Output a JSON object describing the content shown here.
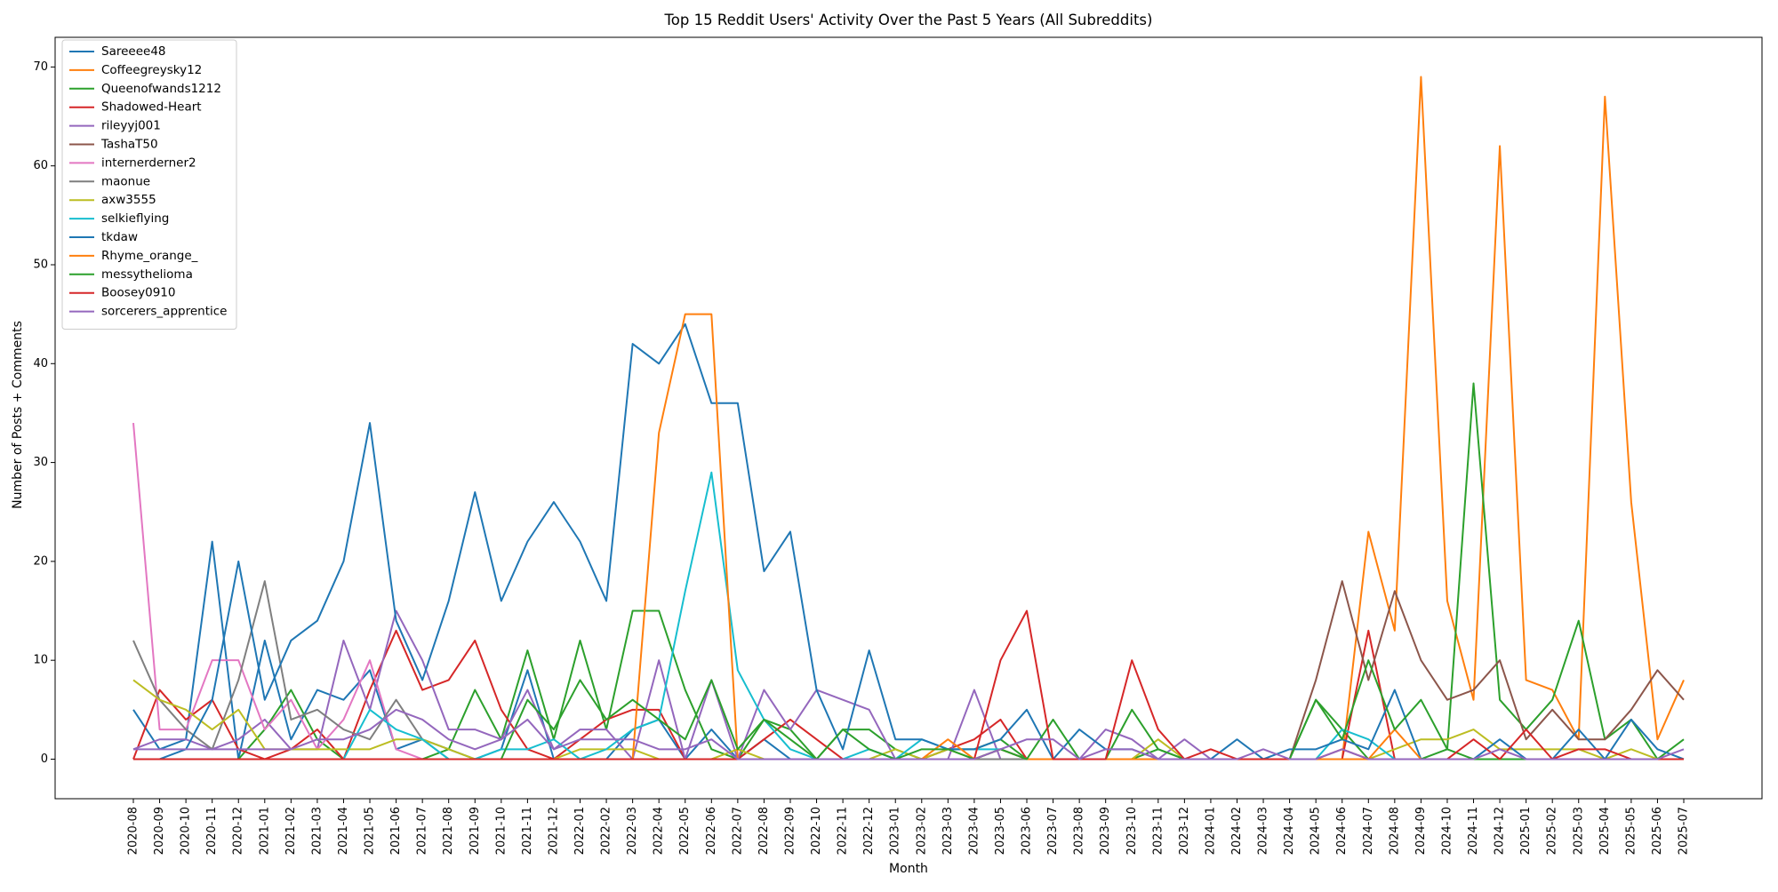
{
  "chart_data": {
    "type": "line",
    "title": "Top 15 Reddit Users' Activity Over the Past 5 Years (All Subreddits)",
    "xlabel": "Month",
    "ylabel": "Number of Posts + Comments",
    "ylim": [
      -4,
      73
    ],
    "yticks": [
      0,
      10,
      20,
      30,
      40,
      50,
      60,
      70
    ],
    "legend_position": "top-left",
    "grid": false,
    "x": [
      "2020-08",
      "2020-09",
      "2020-10",
      "2020-11",
      "2020-12",
      "2021-01",
      "2021-02",
      "2021-03",
      "2021-04",
      "2021-05",
      "2021-06",
      "2021-07",
      "2021-08",
      "2021-09",
      "2021-10",
      "2021-11",
      "2021-12",
      "2022-01",
      "2022-02",
      "2022-03",
      "2022-04",
      "2022-05",
      "2022-06",
      "2022-07",
      "2022-08",
      "2022-09",
      "2022-10",
      "2022-11",
      "2022-12",
      "2023-01",
      "2023-02",
      "2023-03",
      "2023-04",
      "2023-05",
      "2023-06",
      "2023-07",
      "2023-08",
      "2023-09",
      "2023-10",
      "2023-11",
      "2023-12",
      "2024-01",
      "2024-02",
      "2024-03",
      "2024-04",
      "2024-05",
      "2024-06",
      "2024-07",
      "2024-08",
      "2024-09",
      "2024-10",
      "2024-11",
      "2024-12",
      "2025-01",
      "2025-02",
      "2025-03",
      "2025-04",
      "2025-05",
      "2025-06",
      "2025-07"
    ],
    "series": [
      {
        "name": "Sareeee48",
        "color": "#1f77b4",
        "values": [
          5,
          1,
          2,
          22,
          0,
          12,
          2,
          7,
          6,
          9,
          1,
          2,
          1,
          0,
          1,
          9,
          0,
          0,
          0,
          3,
          4,
          0,
          3,
          0,
          2,
          0,
          0,
          0,
          0,
          0,
          0,
          0,
          0,
          0,
          0,
          0,
          0,
          0,
          0,
          0,
          0,
          0,
          0,
          0,
          0,
          0,
          0,
          0,
          0,
          0,
          0,
          0,
          0,
          0,
          0,
          0,
          0,
          0,
          0,
          0
        ]
      },
      {
        "name": "Coffeegreysky12",
        "color": "#ff7f0e",
        "values": [
          0,
          0,
          0,
          0,
          0,
          0,
          0,
          0,
          0,
          0,
          0,
          0,
          0,
          0,
          0,
          0,
          0,
          0,
          0,
          0,
          0,
          0,
          0,
          0,
          0,
          0,
          0,
          0,
          0,
          0,
          0,
          0,
          0,
          0,
          0,
          0,
          0,
          0,
          0,
          0,
          0,
          0,
          0,
          0,
          0,
          0,
          0,
          23,
          13,
          69,
          16,
          6,
          62,
          8,
          7,
          2,
          67,
          26,
          2,
          8
        ]
      },
      {
        "name": "Queenofwands1212",
        "color": "#2ca02c",
        "values": [
          0,
          0,
          0,
          0,
          0,
          3,
          7,
          2,
          0,
          0,
          0,
          0,
          1,
          7,
          2,
          11,
          2,
          12,
          3,
          15,
          15,
          7,
          1,
          0,
          4,
          3,
          0,
          3,
          3,
          1,
          0,
          1,
          1,
          2,
          0,
          0,
          0,
          0,
          0,
          1,
          0,
          0,
          0,
          0,
          0,
          6,
          3,
          0,
          0,
          0,
          1,
          38,
          6,
          3,
          6,
          14,
          2,
          4,
          0,
          2
        ]
      },
      {
        "name": "Shadowed-Heart",
        "color": "#d62728",
        "values": [
          0,
          7,
          4,
          6,
          1,
          0,
          1,
          3,
          0,
          7,
          13,
          7,
          8,
          12,
          5,
          1,
          0,
          2,
          4,
          5,
          5,
          0,
          0,
          0,
          2,
          4,
          2,
          0,
          0,
          0,
          0,
          1,
          2,
          4,
          0,
          0,
          0,
          0,
          0,
          0,
          0,
          0,
          0,
          0,
          0,
          0,
          0,
          13,
          0,
          0,
          0,
          0,
          0,
          0,
          0,
          0,
          0,
          0,
          0,
          0
        ]
      },
      {
        "name": "rileyyj001",
        "color": "#9467bd",
        "values": [
          1,
          2,
          2,
          1,
          2,
          4,
          1,
          1,
          12,
          5,
          15,
          10,
          3,
          3,
          2,
          7,
          1,
          3,
          3,
          0,
          10,
          0,
          8,
          0,
          7,
          3,
          7,
          6,
          5,
          0,
          0,
          0,
          7,
          0,
          0,
          0,
          0,
          3,
          2,
          0,
          2,
          0,
          0,
          0,
          0,
          0,
          0,
          0,
          0,
          0,
          0,
          0,
          0,
          0,
          0,
          0,
          0,
          0,
          0,
          0
        ]
      },
      {
        "name": "TashaT50",
        "color": "#8c564b",
        "values": [
          0,
          0,
          0,
          0,
          0,
          0,
          0,
          0,
          0,
          0,
          0,
          0,
          0,
          0,
          0,
          0,
          0,
          0,
          0,
          0,
          0,
          0,
          0,
          0,
          0,
          0,
          0,
          0,
          0,
          0,
          0,
          0,
          0,
          0,
          0,
          0,
          0,
          0,
          0,
          0,
          0,
          0,
          0,
          0,
          0,
          8,
          18,
          8,
          17,
          10,
          6,
          7,
          10,
          2,
          5,
          2,
          2,
          5,
          9,
          6
        ]
      },
      {
        "name": "internerderner2",
        "color": "#e377c2",
        "values": [
          34,
          3,
          3,
          10,
          10,
          3,
          6,
          1,
          4,
          10,
          1,
          0,
          0,
          0,
          0,
          0,
          0,
          0,
          0,
          0,
          0,
          0,
          0,
          0,
          0,
          0,
          0,
          0,
          0,
          0,
          0,
          0,
          0,
          0,
          0,
          0,
          0,
          0,
          0,
          0,
          0,
          0,
          0,
          0,
          0,
          0,
          0,
          0,
          0,
          0,
          0,
          0,
          0,
          0,
          0,
          0,
          0,
          0,
          0,
          0
        ]
      },
      {
        "name": "maonue",
        "color": "#7f7f7f",
        "values": [
          12,
          6,
          3,
          1,
          8,
          18,
          4,
          5,
          3,
          2,
          6,
          2,
          0,
          0,
          0,
          0,
          0,
          0,
          0,
          0,
          0,
          0,
          0,
          0,
          0,
          0,
          0,
          0,
          0,
          0,
          0,
          0,
          0,
          0,
          0,
          0,
          0,
          0,
          0,
          0,
          0,
          0,
          0,
          0,
          0,
          0,
          0,
          0,
          0,
          0,
          0,
          0,
          0,
          0,
          0,
          0,
          0,
          0,
          0,
          0
        ]
      },
      {
        "name": "axw3555",
        "color": "#bcbd22",
        "values": [
          8,
          6,
          5,
          3,
          5,
          1,
          1,
          1,
          1,
          1,
          2,
          2,
          1,
          0,
          0,
          0,
          0,
          1,
          1,
          1,
          0,
          0,
          0,
          1,
          0,
          0,
          0,
          0,
          0,
          1,
          0,
          1,
          0,
          1,
          0,
          0,
          0,
          0,
          0,
          2,
          0,
          0,
          0,
          0,
          0,
          0,
          0,
          0,
          1,
          2,
          2,
          3,
          1,
          1,
          1,
          1,
          0,
          1,
          0,
          0
        ]
      },
      {
        "name": "selkieflying",
        "color": "#17becf",
        "values": [
          0,
          0,
          0,
          0,
          0,
          0,
          0,
          0,
          0,
          5,
          3,
          2,
          0,
          0,
          1,
          1,
          2,
          0,
          1,
          3,
          4,
          17,
          29,
          9,
          4,
          1,
          0,
          0,
          1,
          0,
          2,
          1,
          1,
          1,
          0,
          0,
          0,
          0,
          0,
          0,
          0,
          0,
          0,
          0,
          0,
          0,
          3,
          2,
          0,
          0,
          0,
          0,
          0,
          0,
          0,
          0,
          0,
          0,
          0,
          0
        ]
      },
      {
        "name": "tkdaw",
        "color": "#1f77b4",
        "values": [
          0,
          0,
          1,
          6,
          20,
          6,
          12,
          14,
          20,
          34,
          14,
          8,
          16,
          27,
          16,
          22,
          26,
          22,
          16,
          42,
          40,
          44,
          36,
          36,
          19,
          23,
          7,
          1,
          11,
          2,
          2,
          1,
          1,
          2,
          5,
          0,
          3,
          1,
          1,
          0,
          0,
          0,
          2,
          0,
          1,
          1,
          2,
          1,
          7,
          0,
          0,
          0,
          2,
          0,
          0,
          3,
          0,
          4,
          1,
          0
        ]
      },
      {
        "name": "Rhyme_orange_",
        "color": "#ff7f0e",
        "values": [
          0,
          0,
          0,
          0,
          0,
          0,
          0,
          0,
          0,
          0,
          0,
          0,
          0,
          0,
          0,
          0,
          0,
          0,
          0,
          0,
          33,
          45,
          45,
          0,
          0,
          0,
          0,
          0,
          0,
          0,
          0,
          2,
          0,
          1,
          0,
          0,
          0,
          0,
          0,
          0,
          0,
          0,
          0,
          0,
          0,
          0,
          0,
          0,
          3,
          0,
          0,
          0,
          0,
          0,
          0,
          0,
          0,
          0,
          0,
          0
        ]
      },
      {
        "name": "messythelioma",
        "color": "#2ca02c",
        "values": [
          0,
          0,
          0,
          0,
          0,
          0,
          0,
          0,
          0,
          0,
          0,
          0,
          0,
          0,
          0,
          6,
          3,
          8,
          4,
          6,
          4,
          2,
          8,
          1,
          4,
          2,
          0,
          3,
          1,
          0,
          1,
          1,
          0,
          1,
          0,
          4,
          0,
          0,
          5,
          1,
          0,
          0,
          0,
          0,
          0,
          6,
          2,
          10,
          3,
          6,
          1,
          0,
          0,
          0,
          0,
          0,
          0,
          0,
          0,
          0
        ]
      },
      {
        "name": "Boosey0910",
        "color": "#d62728",
        "values": [
          0,
          0,
          0,
          0,
          0,
          0,
          0,
          0,
          0,
          0,
          0,
          0,
          0,
          0,
          0,
          0,
          0,
          0,
          0,
          0,
          0,
          0,
          0,
          0,
          0,
          0,
          0,
          0,
          0,
          0,
          0,
          0,
          0,
          10,
          15,
          0,
          0,
          0,
          10,
          3,
          0,
          1,
          0,
          0,
          0,
          0,
          1,
          0,
          0,
          0,
          0,
          2,
          0,
          3,
          0,
          1,
          1,
          0,
          0,
          0
        ]
      },
      {
        "name": "sorcerers_apprentice",
        "color": "#9467bd",
        "values": [
          1,
          1,
          1,
          1,
          1,
          1,
          1,
          2,
          2,
          3,
          5,
          4,
          2,
          1,
          2,
          4,
          1,
          2,
          2,
          2,
          1,
          1,
          2,
          0,
          0,
          0,
          0,
          0,
          0,
          0,
          0,
          0,
          0,
          1,
          2,
          2,
          0,
          1,
          1,
          0,
          0,
          0,
          0,
          1,
          0,
          0,
          1,
          0,
          0,
          0,
          0,
          0,
          1,
          0,
          0,
          0,
          0,
          0,
          0,
          1
        ]
      }
    ]
  }
}
